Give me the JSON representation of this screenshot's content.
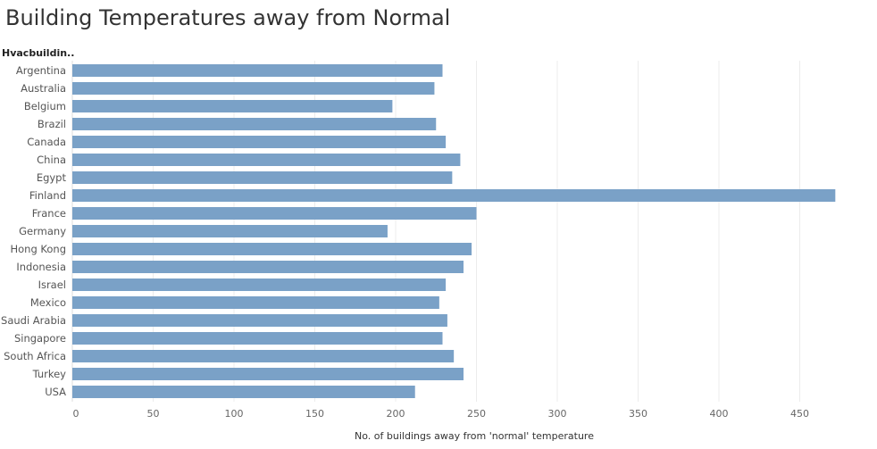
{
  "chart_data": {
    "type": "bar",
    "orientation": "horizontal",
    "title": "Building Temperatures away from Normal",
    "dimension_header": "Hvacbuildin..",
    "xlabel": "No. of buildings away from 'normal' temperature",
    "ylabel": "",
    "xlim": [
      0,
      495
    ],
    "xticks": [
      0,
      50,
      100,
      150,
      200,
      250,
      300,
      350,
      400,
      450
    ],
    "grid": true,
    "color": "#7aa1c7",
    "categories": [
      "Argentina",
      "Australia",
      "Belgium",
      "Brazil",
      "Canada",
      "China",
      "Egypt",
      "Finland",
      "France",
      "Germany",
      "Hong Kong",
      "Indonesia",
      "Israel",
      "Mexico",
      "Saudi Arabia",
      "Singapore",
      "South Africa",
      "Turkey",
      "USA"
    ],
    "values": [
      229,
      224,
      198,
      225,
      231,
      240,
      235,
      472,
      250,
      195,
      247,
      242,
      231,
      227,
      232,
      229,
      236,
      242,
      212
    ]
  }
}
